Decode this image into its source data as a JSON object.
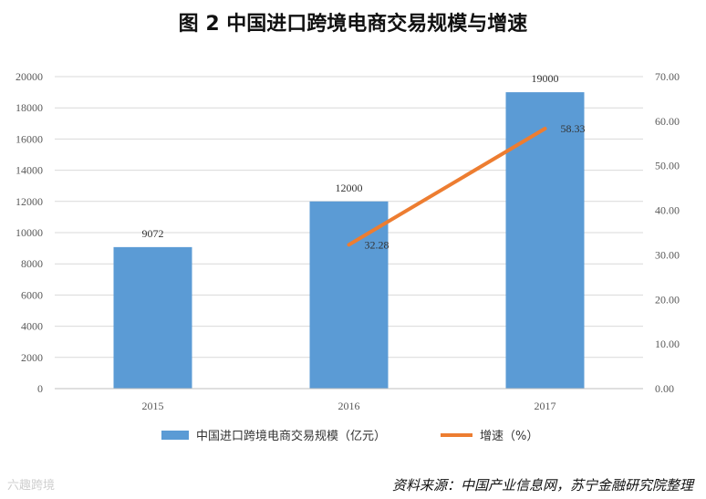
{
  "chart_data": {
    "type": "bar",
    "title": "图 2  中国进口跨境电商交易规模与增速",
    "categories": [
      "2015",
      "2016",
      "2017"
    ],
    "series": [
      {
        "name": "中国进口跨境电商交易规模（亿元）",
        "type": "bar",
        "axis": "left",
        "color": "#5b9bd5",
        "values": [
          9072,
          12000,
          19000
        ]
      },
      {
        "name": "增速（%）",
        "type": "line",
        "axis": "right",
        "color": "#ed7d31",
        "values": [
          null,
          32.28,
          58.33
        ]
      }
    ],
    "ylim_left": [
      0,
      20000
    ],
    "yticks_left": [
      "0",
      "2000",
      "4000",
      "6000",
      "8000",
      "10000",
      "12000",
      "14000",
      "16000",
      "18000",
      "20000"
    ],
    "ylim_right": [
      0,
      70
    ],
    "yticks_right": [
      "0.00",
      "10.00",
      "20.00",
      "30.00",
      "40.00",
      "50.00",
      "60.00",
      "70.00"
    ],
    "bar_labels": [
      "9072",
      "12000",
      "19000"
    ],
    "line_labels": [
      "",
      "32.28",
      "58.33"
    ],
    "grid": true,
    "legend_position": "bottom"
  },
  "source": "资料来源：中国产业信息网，苏宁金融研究院整理",
  "watermark": "六趣跨境"
}
